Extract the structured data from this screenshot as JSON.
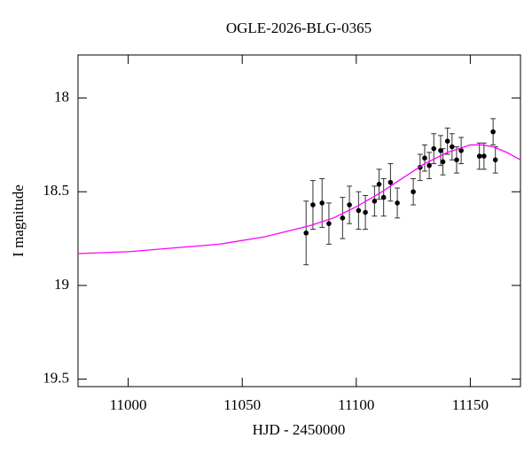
{
  "chart_data": {
    "type": "scatter",
    "title": "OGLE-2026-BLG-0365",
    "x_label": "HJD - 2450000",
    "y_label": "I magnitude",
    "xlim": [
      10978,
      11172
    ],
    "ylim": [
      19.54,
      17.77
    ],
    "xticks": [
      11000,
      11050,
      11100,
      11150
    ],
    "yticks": [
      18,
      18.5,
      19,
      19.5
    ],
    "series": [
      {
        "type": "scatter",
        "color": "#000000",
        "x": [
          11078,
          11081,
          11085,
          11088,
          11094,
          11097,
          11101,
          11104,
          11108,
          11110,
          11112,
          11115,
          11118,
          11125,
          11128,
          11130,
          11132,
          11134,
          11137,
          11138,
          11140,
          11142,
          11144,
          11146,
          11154,
          11156,
          11160,
          11161
        ],
        "values": [
          18.72,
          18.57,
          18.56,
          18.67,
          18.64,
          18.57,
          18.6,
          18.61,
          18.55,
          18.46,
          18.53,
          18.45,
          18.56,
          18.5,
          18.37,
          18.32,
          18.36,
          18.27,
          18.28,
          18.34,
          18.23,
          18.26,
          18.33,
          18.28,
          18.31,
          18.31,
          18.18,
          18.33
        ],
        "errors": [
          0.17,
          0.13,
          0.13,
          0.11,
          0.11,
          0.1,
          0.1,
          0.09,
          0.08,
          0.08,
          0.1,
          0.1,
          0.08,
          0.07,
          0.07,
          0.07,
          0.07,
          0.08,
          0.08,
          0.07,
          0.07,
          0.07,
          0.07,
          0.07,
          0.07,
          0.07,
          0.07,
          0.07
        ]
      },
      {
        "type": "line",
        "color": "#ff00ff",
        "x": [
          10978,
          11000,
          11020,
          11040,
          11060,
          11080,
          11090,
          11100,
          11110,
          11120,
          11130,
          11140,
          11150,
          11155,
          11160,
          11166,
          11172
        ],
        "values": [
          18.83,
          18.82,
          18.8,
          18.78,
          18.74,
          18.68,
          18.64,
          18.58,
          18.51,
          18.43,
          18.35,
          18.29,
          18.25,
          18.25,
          18.26,
          18.29,
          18.33
        ]
      }
    ]
  }
}
